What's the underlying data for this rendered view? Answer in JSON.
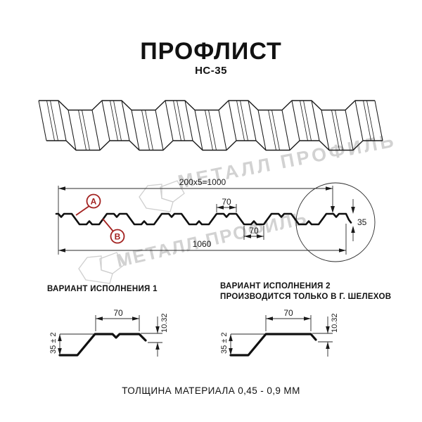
{
  "header": {
    "title": "ПРОФЛИСТ",
    "subtitle": "НС-35"
  },
  "watermark": {
    "text": "МЕТАЛЛ ПРОФИЛЬ",
    "color": "#d2d2d2"
  },
  "cross_section": {
    "dim_total_top": "200x5=1000",
    "dim_rib_top": "70",
    "dim_rib_bottom": "70",
    "dim_total_width": "1060",
    "dim_height": "35",
    "label_a": "А",
    "label_b": "В",
    "accent_color": "#a32220"
  },
  "variant1": {
    "title": "ВАРИАНТ ИСПОЛНЕНИЯ 1",
    "dim_flange": "70",
    "dim_lip": "10.32",
    "dim_height": "35 ± 2"
  },
  "variant2": {
    "title": "ВАРИАНТ ИСПОЛНЕНИЯ 2",
    "subtitle": "ПРОИЗВОДИТСЯ ТОЛЬКО В Г. ШЕЛЕХОВ",
    "dim_flange": "70",
    "dim_lip": "10.32",
    "dim_height": "35 ± 2"
  },
  "footer": {
    "note": "ТОЛЩИНА МАТЕРИАЛА 0,45 - 0,9 ММ"
  }
}
